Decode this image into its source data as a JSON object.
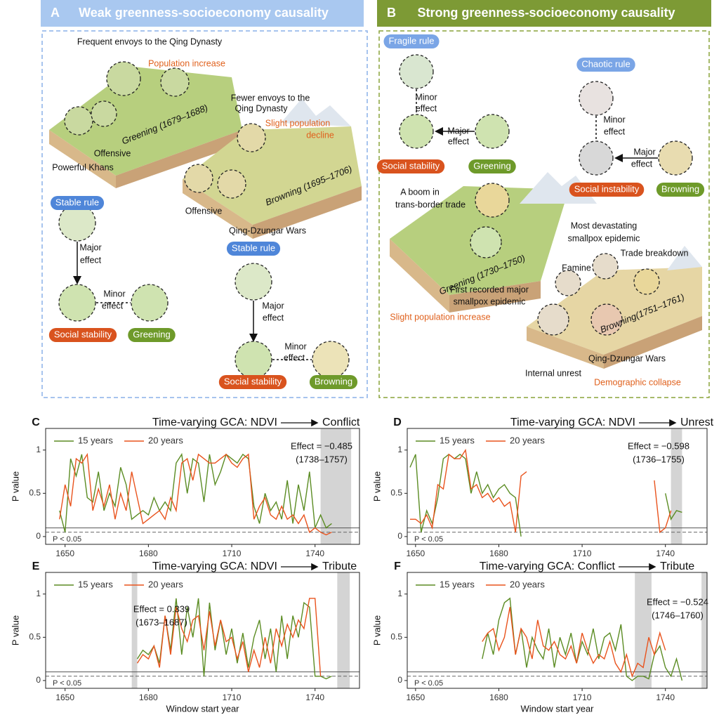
{
  "panels": [
    {
      "letter": "A",
      "title": "Weak greenness-socioeconomy causality",
      "labels": [
        "Frequent envoys to the Qing Dynasty",
        "Population increase",
        "Greening (1679–1688)",
        "Offensive",
        "Powerful Khans",
        "Fewer envoys to the",
        "Qing Dynasty",
        "Slight population",
        "decline",
        "Browning (1695–1706)",
        "Offensive",
        "Qing-Dzungar Wars",
        "Stable rule",
        "Major",
        "effect",
        "Minor",
        "effect",
        "Social stability",
        "Greening",
        "Stable rule",
        "Major",
        "effect",
        "Minor",
        "effect",
        "Social stability",
        "Browning"
      ]
    },
    {
      "letter": "B",
      "title": "Strong greenness-socioeconomy causality",
      "labels": [
        "Fragile rule",
        "Minor",
        "effect",
        "Major",
        "effect",
        "Social stability",
        "Greening",
        "Chaotic rule",
        "Minor",
        "effect",
        "Major",
        "effect",
        "Social instability",
        "Browning",
        "A boom in",
        "trans-border trade",
        "Greening (1730–1750)",
        "First recorded major",
        "smallpox epidemic",
        "Slight population increase",
        "Most devastating",
        "smallpox epidemic",
        "Trade breakdown",
        "Famine",
        "Browning(1751–1761)",
        "Qing-Dzungar Wars",
        "Internal unrest",
        "Demographic collapse"
      ]
    }
  ],
  "chart_data": [
    {
      "type": "line",
      "letter": "C",
      "title": "Time-varying GCA: NDVI",
      "title_target": "Conflict",
      "ylabel": "P value",
      "threshold_label": "P < 0.05",
      "x": [
        1648,
        1650,
        1652,
        1654,
        1656,
        1658,
        1660,
        1662,
        1664,
        1666,
        1668,
        1670,
        1672,
        1674,
        1676,
        1678,
        1680,
        1682,
        1684,
        1686,
        1688,
        1690,
        1692,
        1694,
        1696,
        1698,
        1700,
        1702,
        1704,
        1706,
        1708,
        1710,
        1712,
        1714,
        1716,
        1718,
        1720,
        1722,
        1724,
        1726,
        1728,
        1730,
        1732,
        1734,
        1736,
        1738,
        1740,
        1742,
        1744,
        1746
      ],
      "series": [
        {
          "name": "15 years",
          "color": "#5b8c23",
          "values": [
            0.3,
            0.05,
            0.9,
            0.7,
            0.95,
            0.45,
            0.4,
            0.75,
            0.3,
            0.5,
            0.35,
            0.8,
            0.6,
            0.2,
            0.25,
            0.3,
            0.25,
            0.45,
            0.3,
            0.4,
            0.3,
            0.85,
            0.95,
            0.5,
            0.9,
            0.85,
            0.4,
            0.95,
            0.6,
            0.75,
            0.95,
            0.9,
            0.85,
            0.95,
            0.9,
            0.35,
            0.15,
            0.5,
            0.3,
            0.4,
            0.2,
            0.65,
            0.15,
            0.6,
            0.3,
            0.75,
            0.1,
            0.25,
            0.1,
            0.15
          ]
        },
        {
          "name": "20 years",
          "color": "#e9531d",
          "values": [
            0.2,
            0.6,
            0.35,
            0.9,
            0.85,
            0.95,
            0.3,
            0.55,
            0.35,
            0.6,
            0.2,
            0.5,
            0.3,
            0.75,
            0.45,
            0.15,
            0.2,
            0.25,
            0.3,
            0.2,
            0.45,
            0.3,
            0.85,
            0.9,
            0.65,
            0.95,
            0.9,
            0.85,
            0.85,
            0.9,
            0.95,
            0.85,
            0.8,
            0.9,
            0.95,
            0.2,
            0.35,
            0.45,
            0.25,
            0.2,
            0.35,
            0.2,
            0.25,
            0.15,
            0.25,
            0.05,
            0.1,
            0.05,
            0.02,
            0.05
          ]
        }
      ],
      "xlim": [
        1643,
        1756
      ],
      "ylim": [
        -0.09,
        1.25
      ],
      "xticks": [
        1650,
        1680,
        1710,
        1740
      ],
      "yticks": [
        0,
        0.5,
        1
      ],
      "hlines": [
        {
          "value": 0.1,
          "style": "solid"
        },
        {
          "value": 0.05,
          "style": "dashed"
        }
      ],
      "shaded_ranges": [
        [
          1742,
          1753
        ]
      ],
      "annotation": [
        "Effect = −0.485",
        "(1738–1757)"
      ]
    },
    {
      "type": "line",
      "letter": "D",
      "title": "Time-varying GCA: NDVI",
      "title_target": "Unrest",
      "ylabel": "P value",
      "threshold_label": "P < 0.05",
      "x": [
        1648,
        1650,
        1652,
        1654,
        1656,
        1658,
        1660,
        1662,
        1664,
        1666,
        1668,
        1670,
        1672,
        1674,
        1676,
        1678,
        1680,
        1682,
        1684,
        1686,
        1688,
        1690,
        1692,
        1694,
        1696,
        1698,
        1700,
        1702,
        1704,
        1706,
        1708,
        1710,
        1712,
        1714,
        1716,
        1718,
        1720,
        1722,
        1724,
        1726,
        1728,
        1730,
        1732,
        1734,
        1736,
        1738,
        1740,
        1742,
        1744,
        1746
      ],
      "series": [
        {
          "name": "15 years",
          "color": "#5b8c23",
          "values": [
            0.8,
            0.95,
            0.05,
            0.3,
            0.15,
            0.45,
            0.9,
            0.95,
            0.9,
            0.95,
            0.9,
            0.5,
            0.75,
            0.5,
            0.6,
            0.45,
            0.55,
            0.6,
            0.5,
            0.45,
            0.0,
            null,
            null,
            null,
            null,
            null,
            null,
            null,
            null,
            null,
            null,
            null,
            null,
            null,
            null,
            null,
            null,
            null,
            null,
            null,
            null,
            null,
            null,
            null,
            null,
            null,
            0.5,
            0.2,
            0.3,
            0.28
          ]
        },
        {
          "name": "20 years",
          "color": "#e9531d",
          "values": [
            0.2,
            0.2,
            0.15,
            0.25,
            0.1,
            0.6,
            0.55,
            0.95,
            0.9,
            0.9,
            1.0,
            0.55,
            0.6,
            0.45,
            0.5,
            0.4,
            0.45,
            0.35,
            0.4,
            0.05,
            0.7,
            0.75,
            null,
            null,
            null,
            null,
            null,
            null,
            null,
            null,
            null,
            null,
            null,
            null,
            null,
            null,
            null,
            null,
            null,
            null,
            null,
            null,
            null,
            null,
            0.65,
            0.05,
            0.1,
            0.3,
            null,
            null
          ]
        }
      ],
      "xlim": [
        1647,
        1755
      ],
      "ylim": [
        -0.09,
        1.25
      ],
      "xticks": [
        1650,
        1680,
        1710,
        1740
      ],
      "yticks": [
        0,
        0.5,
        1
      ],
      "hlines": [
        {
          "value": 0.1,
          "style": "solid"
        },
        {
          "value": 0.05,
          "style": "dashed"
        }
      ],
      "shaded_ranges": [
        [
          1742,
          1746
        ]
      ],
      "annotation": [
        "Effect = −0.598",
        "(1736–1755)"
      ]
    },
    {
      "type": "line",
      "letter": "E",
      "title": "Time-varying GCA: NDVI",
      "title_target": "Tribute",
      "ylabel": "P value",
      "xlabel": "Window start year",
      "threshold_label": "P < 0.05",
      "x": [
        1648,
        1650,
        1652,
        1654,
        1656,
        1658,
        1660,
        1662,
        1664,
        1666,
        1668,
        1670,
        1672,
        1674,
        1676,
        1678,
        1680,
        1682,
        1684,
        1686,
        1688,
        1690,
        1692,
        1694,
        1696,
        1698,
        1700,
        1702,
        1704,
        1706,
        1708,
        1710,
        1712,
        1714,
        1716,
        1718,
        1720,
        1722,
        1724,
        1726,
        1728,
        1730,
        1732,
        1734,
        1736,
        1738,
        1740,
        1742,
        1744,
        1746
      ],
      "series": [
        {
          "name": "15 years",
          "color": "#5b8c23",
          "values": [
            null,
            null,
            null,
            null,
            null,
            null,
            null,
            null,
            null,
            null,
            null,
            null,
            null,
            null,
            0.25,
            0.35,
            0.3,
            0.4,
            0.2,
            0.75,
            0.35,
            0.95,
            0.3,
            0.85,
            0.5,
            0.95,
            0.05,
            0.9,
            0.35,
            0.7,
            0.3,
            0.6,
            0.2,
            0.55,
            0.15,
            0.5,
            0.7,
            0.25,
            0.6,
            0.1,
            0.75,
            0.25,
            0.75,
            0.5,
            0.9,
            0.85,
            0.05,
            0.05,
            0.02,
            0.05
          ]
        },
        {
          "name": "20 years",
          "color": "#e9531d",
          "values": [
            null,
            null,
            null,
            null,
            null,
            null,
            null,
            null,
            null,
            null,
            null,
            null,
            null,
            null,
            0.2,
            0.3,
            0.25,
            0.4,
            0.15,
            0.75,
            0.3,
            0.85,
            0.6,
            0.45,
            0.7,
            0.75,
            0.35,
            0.8,
            0.4,
            0.7,
            0.45,
            0.5,
            0.25,
            0.45,
            0.1,
            0.35,
            0.15,
            0.5,
            0.2,
            0.6,
            0.4,
            0.65,
            0.5,
            0.7,
            0.6,
            0.95,
            0.95,
            0.05,
            null,
            null
          ]
        }
      ],
      "xlim": [
        1643,
        1756
      ],
      "ylim": [
        -0.09,
        1.25
      ],
      "xticks": [
        1650,
        1680,
        1710,
        1740
      ],
      "yticks": [
        0,
        0.5,
        1
      ],
      "hlines": [
        {
          "value": 0.1,
          "style": "solid"
        },
        {
          "value": 0.05,
          "style": "dashed"
        }
      ],
      "shaded_ranges": [
        [
          1674,
          1676
        ],
        [
          1748,
          1752.5
        ]
      ],
      "annotation": [
        "Effect = 0.339",
        "(1673–1687)"
      ]
    },
    {
      "type": "line",
      "letter": "F",
      "title": "Time-varying GCA: Conflict",
      "title_target": "Tribute",
      "ylabel": "P value",
      "xlabel": "Window start year",
      "threshold_label": "P < 0.05",
      "x": [
        1648,
        1650,
        1652,
        1654,
        1656,
        1658,
        1660,
        1662,
        1664,
        1666,
        1668,
        1670,
        1672,
        1674,
        1676,
        1678,
        1680,
        1682,
        1684,
        1686,
        1688,
        1690,
        1692,
        1694,
        1696,
        1698,
        1700,
        1702,
        1704,
        1706,
        1708,
        1710,
        1712,
        1714,
        1716,
        1718,
        1720,
        1722,
        1724,
        1726,
        1728,
        1730,
        1732,
        1734,
        1736,
        1738,
        1740,
        1742,
        1744,
        1746
      ],
      "series": [
        {
          "name": "15 years",
          "color": "#5b8c23",
          "values": [
            null,
            null,
            null,
            null,
            null,
            null,
            null,
            null,
            null,
            null,
            null,
            null,
            null,
            0.25,
            0.55,
            0.3,
            0.7,
            0.9,
            0.95,
            0.3,
            0.6,
            0.15,
            0.5,
            0.35,
            0.25,
            0.6,
            0.15,
            0.5,
            0.3,
            0.55,
            0.2,
            0.45,
            0.3,
            0.6,
            0.25,
            0.5,
            0.55,
            0.35,
            0.65,
            0.05,
            0.0,
            0.05,
            0.05,
            0.02,
            0.3,
            0.4,
            0.15,
            0.05,
            0.25,
            0.0
          ]
        },
        {
          "name": "20 years",
          "color": "#e9531d",
          "values": [
            null,
            null,
            null,
            null,
            null,
            null,
            null,
            null,
            null,
            null,
            null,
            null,
            null,
            0.45,
            0.55,
            0.6,
            0.35,
            0.5,
            0.85,
            0.3,
            0.6,
            0.5,
            0.25,
            0.7,
            0.4,
            0.35,
            0.45,
            0.3,
            0.25,
            0.4,
            0.2,
            0.55,
            0.35,
            0.2,
            0.3,
            0.25,
            0.45,
            0.2,
            0.1,
            0.3,
            0.05,
            0.2,
            0.15,
            0.5,
            0.3,
            0.55,
            0.35,
            null,
            null,
            null
          ]
        }
      ],
      "xlim": [
        1647,
        1755
      ],
      "ylim": [
        -0.09,
        1.25
      ],
      "xticks": [
        1650,
        1680,
        1710,
        1740
      ],
      "yticks": [
        0,
        0.5,
        1
      ],
      "hlines": [
        {
          "value": 0.1,
          "style": "solid"
        },
        {
          "value": 0.05,
          "style": "dashed"
        }
      ],
      "shaded_ranges": [
        [
          1729,
          1735
        ],
        [
          1753,
          1755
        ]
      ],
      "annotation": [
        "Effect = −0.524",
        "(1746–1760)"
      ]
    }
  ]
}
